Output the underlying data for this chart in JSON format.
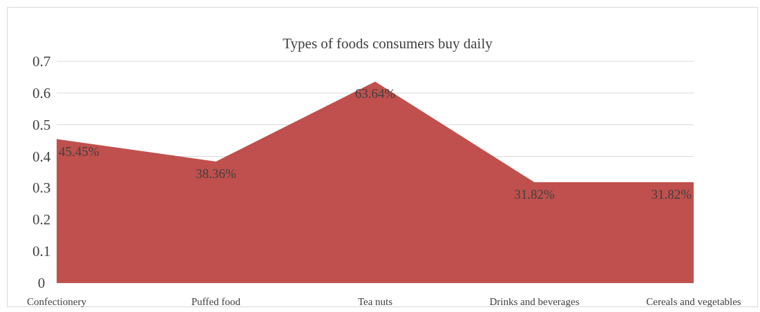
{
  "chart_data": {
    "type": "area",
    "title": "Types of foods consumers buy daily",
    "categories": [
      "Confectionery",
      "Puffed food",
      "Tea nuts",
      "Drinks and beverages",
      "Cereals and vegetables"
    ],
    "series": [
      {
        "color": "#c0504d",
        "values": [
          0.4545,
          0.3836,
          0.6364,
          0.3182,
          0.3182
        ],
        "value_labels": [
          "45.45%",
          "38.36%",
          "63.64%",
          "31.82%",
          "31.82%"
        ]
      }
    ],
    "ylim": [
      0,
      0.7
    ],
    "yticks": [
      0,
      0.1,
      0.2,
      0.3,
      0.4,
      0.5,
      0.6,
      0.7
    ],
    "grid": "y"
  }
}
